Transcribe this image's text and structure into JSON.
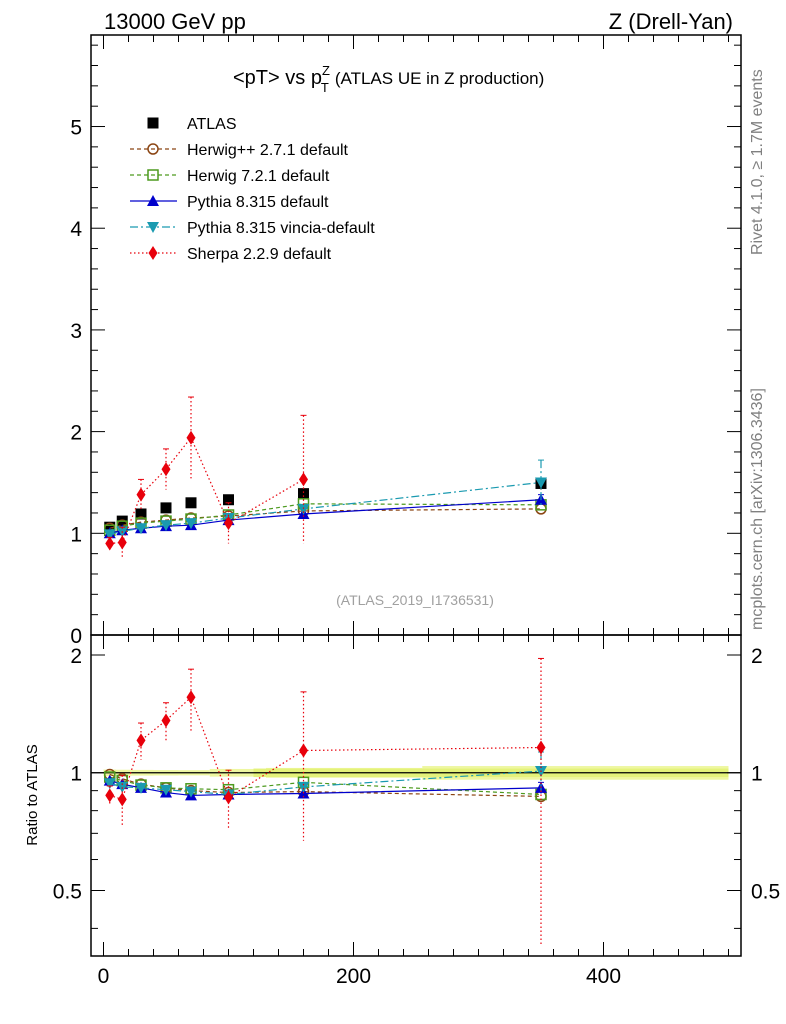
{
  "header": {
    "left": "13000 GeV pp",
    "right": "Z (Drell-Yan)"
  },
  "side_labels": {
    "rivet": "Rivet 4.1.0, ≥ 1.7M events",
    "mcplots": "mcplots.cern.ch [arXiv:1306.3436]"
  },
  "chart_data": {
    "type": "line",
    "title_main": "<pT> vs p",
    "title_sup": "Z",
    "title_sub": "T",
    "title_rest": "(ATLAS UE in Z production)",
    "watermark": "(ATLAS_2019_I1736531)",
    "xlim": [
      -10,
      510
    ],
    "main_ylim": [
      0,
      5.9
    ],
    "ratio_ylim": [
      0.34,
      2.25
    ],
    "ratio_ylabel": "Ratio to ATLAS",
    "x_ticks": [
      "0",
      "200",
      "400"
    ],
    "main_y_ticks": [
      "0",
      "1",
      "2",
      "3",
      "4",
      "5"
    ],
    "ratio_y_ticks": [
      "0.5",
      "1",
      "2"
    ],
    "x": [
      5,
      15,
      30,
      50,
      70,
      100,
      160,
      350
    ],
    "data": {
      "name": "ATLAS",
      "values": [
        1.06,
        1.12,
        1.19,
        1.25,
        1.3,
        1.33,
        1.39,
        1.49
      ],
      "errors": [
        0.02,
        0.02,
        0.02,
        0.02,
        0.02,
        0.03,
        0.04,
        0.06
      ]
    },
    "series": [
      {
        "name": "Herwig++ 2.7.1 default",
        "color": "#8b4513",
        "values": [
          1.05,
          1.08,
          1.11,
          1.13,
          1.15,
          1.17,
          1.22,
          1.24
        ],
        "ratio": [
          0.99,
          0.965,
          0.935,
          0.915,
          0.9,
          0.89,
          0.895,
          0.87
        ],
        "errors": [
          0,
          0,
          0,
          0,
          0,
          0,
          0,
          0
        ],
        "ratio_errors": [
          0,
          0,
          0,
          0,
          0,
          0,
          0,
          0
        ]
      },
      {
        "name": "Herwig 7.2.1 default",
        "color": "#4d9a1f",
        "values": [
          1.03,
          1.07,
          1.1,
          1.12,
          1.14,
          1.18,
          1.29,
          1.28
        ],
        "ratio": [
          0.975,
          0.955,
          0.93,
          0.915,
          0.91,
          0.905,
          0.945,
          0.88
        ],
        "errors": [
          0,
          0,
          0,
          0,
          0,
          0,
          0,
          0
        ],
        "ratio_errors": [
          0,
          0,
          0,
          0,
          0,
          0,
          0,
          0
        ]
      },
      {
        "name": "Pythia 8.315 default",
        "color": "#0000cc",
        "values": [
          1.0,
          1.03,
          1.05,
          1.07,
          1.08,
          1.13,
          1.19,
          1.33
        ],
        "ratio": [
          0.955,
          0.935,
          0.915,
          0.89,
          0.875,
          0.88,
          0.885,
          0.915
        ],
        "errors": [
          0,
          0,
          0,
          0,
          0,
          0,
          0,
          0.05
        ],
        "ratio_errors": [
          0,
          0,
          0,
          0,
          0,
          0,
          0,
          0.03
        ]
      },
      {
        "name": "Pythia 8.315 vincia-default",
        "color": "#1a9ab0",
        "values": [
          0.99,
          1.02,
          1.05,
          1.08,
          1.1,
          1.15,
          1.24,
          1.5
        ],
        "ratio": [
          0.94,
          0.92,
          0.915,
          0.905,
          0.895,
          0.88,
          0.92,
          1.01
        ],
        "errors": [
          0,
          0,
          0,
          0,
          0,
          0,
          0,
          0.22
        ],
        "ratio_errors": [
          0,
          0,
          0,
          0,
          0,
          0,
          0,
          0.12
        ]
      },
      {
        "name": "Sherpa 2.2.9 default",
        "color": "#e8000b",
        "values": [
          0.9,
          0.91,
          1.38,
          1.63,
          1.94,
          1.1,
          1.53,
          1.0
        ],
        "ratio": [
          0.875,
          0.855,
          1.21,
          1.36,
          1.56,
          0.865,
          1.14,
          1.16
        ],
        "errors": [
          0.06,
          0.15,
          0.15,
          0.2,
          0.4,
          0.2,
          0.63,
          0
        ],
        "ratio_errors": [
          0.05,
          0.13,
          0.13,
          0.15,
          0.28,
          0.15,
          0.47,
          0.8
        ],
        "main_mask": [
          true,
          true,
          true,
          true,
          true,
          true,
          true,
          false
        ]
      }
    ]
  }
}
